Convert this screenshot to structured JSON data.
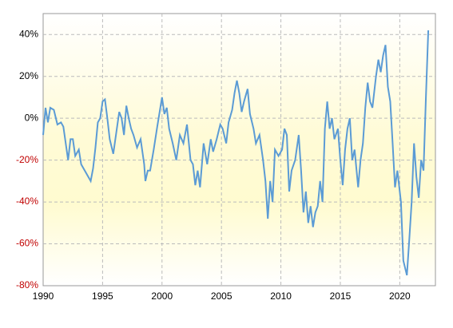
{
  "chart_data": {
    "type": "line",
    "x": [
      1990.0,
      1990.2,
      1990.4,
      1990.6,
      1990.9,
      1991.2,
      1991.5,
      1991.7,
      1991.9,
      1992.1,
      1992.3,
      1992.5,
      1992.7,
      1993.0,
      1993.2,
      1993.5,
      1993.8,
      1994.0,
      1994.2,
      1994.4,
      1994.6,
      1994.8,
      1995.0,
      1995.2,
      1995.4,
      1995.6,
      1995.9,
      1996.2,
      1996.4,
      1996.6,
      1996.8,
      1997.0,
      1997.2,
      1997.4,
      1997.6,
      1997.9,
      1998.2,
      1998.5,
      1998.6,
      1998.8,
      1999.0,
      1999.3,
      1999.6,
      2000.0,
      2000.2,
      2000.4,
      2000.6,
      2000.9,
      2001.2,
      2001.5,
      2001.8,
      2002.1,
      2002.4,
      2002.6,
      2002.8,
      2003.0,
      2003.2,
      2003.5,
      2003.8,
      2004.1,
      2004.3,
      2004.6,
      2004.9,
      2005.1,
      2005.4,
      2005.6,
      2005.9,
      2006.1,
      2006.3,
      2006.5,
      2006.7,
      2006.9,
      2007.2,
      2007.4,
      2007.7,
      2007.9,
      2008.2,
      2008.5,
      2008.7,
      2008.9,
      2009.1,
      2009.3,
      2009.5,
      2009.8,
      2010.1,
      2010.3,
      2010.5,
      2010.7,
      2010.9,
      2011.2,
      2011.5,
      2011.7,
      2011.9,
      2012.1,
      2012.3,
      2012.5,
      2012.7,
      2012.9,
      2013.1,
      2013.3,
      2013.5,
      2013.7,
      2013.9,
      2014.1,
      2014.3,
      2014.5,
      2014.8,
      2015.0,
      2015.2,
      2015.4,
      2015.6,
      2015.8,
      2016.0,
      2016.2,
      2016.5,
      2016.7,
      2016.9,
      2017.1,
      2017.3,
      2017.5,
      2017.7,
      2018.0,
      2018.2,
      2018.4,
      2018.6,
      2018.8,
      2019.0,
      2019.2,
      2019.4,
      2019.6,
      2019.8,
      2020.1,
      2020.3,
      2020.6,
      2020.8,
      2021.0,
      2021.2,
      2021.4,
      2021.6,
      2021.8,
      2022.0,
      2022.2,
      2022.4
    ],
    "series": [
      {
        "color": "#5b9bd5",
        "values": [
          -8,
          5,
          -2,
          5,
          4,
          -3,
          -2,
          -4,
          -12,
          -20,
          -10,
          -10,
          -18,
          -15,
          -22,
          -25,
          -28,
          -30,
          -24,
          -14,
          -2,
          0,
          8,
          9,
          0,
          -10,
          -17,
          -5,
          3,
          0,
          -8,
          6,
          0,
          -5,
          -8,
          -14,
          -10,
          -22,
          -30,
          -25,
          -25,
          -15,
          -4,
          10,
          2,
          5,
          -5,
          -12,
          -20,
          -8,
          -12,
          -3,
          -20,
          -22,
          -32,
          -25,
          -33,
          -12,
          -22,
          -10,
          -16,
          -10,
          -3,
          -5,
          -12,
          -2,
          4,
          12,
          18,
          12,
          3,
          8,
          14,
          2,
          -5,
          -12,
          -8,
          -20,
          -30,
          -48,
          -30,
          -40,
          -15,
          -18,
          -15,
          -5,
          -8,
          -35,
          -25,
          -20,
          -8,
          -25,
          -45,
          -35,
          -50,
          -42,
          -52,
          -45,
          -42,
          -30,
          -40,
          -5,
          8,
          -5,
          0,
          -10,
          -5,
          -20,
          -32,
          -15,
          -5,
          0,
          -20,
          -15,
          -33,
          -20,
          -12,
          5,
          17,
          8,
          5,
          20,
          28,
          22,
          30,
          35,
          15,
          8,
          -12,
          -33,
          -25,
          -40,
          -68,
          -75,
          -58,
          -40,
          -12,
          -28,
          -38,
          -20,
          -25,
          10,
          42
        ]
      }
    ],
    "xlim": [
      1990,
      2023
    ],
    "xticks": [
      1990,
      1995,
      2000,
      2005,
      2010,
      2015,
      2020
    ],
    "ylim": [
      -80,
      50
    ],
    "yticks": [
      {
        "value": -80,
        "label": "-80%"
      },
      {
        "value": -60,
        "label": "-60%"
      },
      {
        "value": -40,
        "label": "-40%"
      },
      {
        "value": -20,
        "label": "-20%"
      },
      {
        "value": 0,
        "label": "0%"
      },
      {
        "value": 20,
        "label": "20%"
      },
      {
        "value": 40,
        "label": "40%"
      }
    ],
    "grid": true,
    "negative_tick_label_color": "#c00000"
  }
}
